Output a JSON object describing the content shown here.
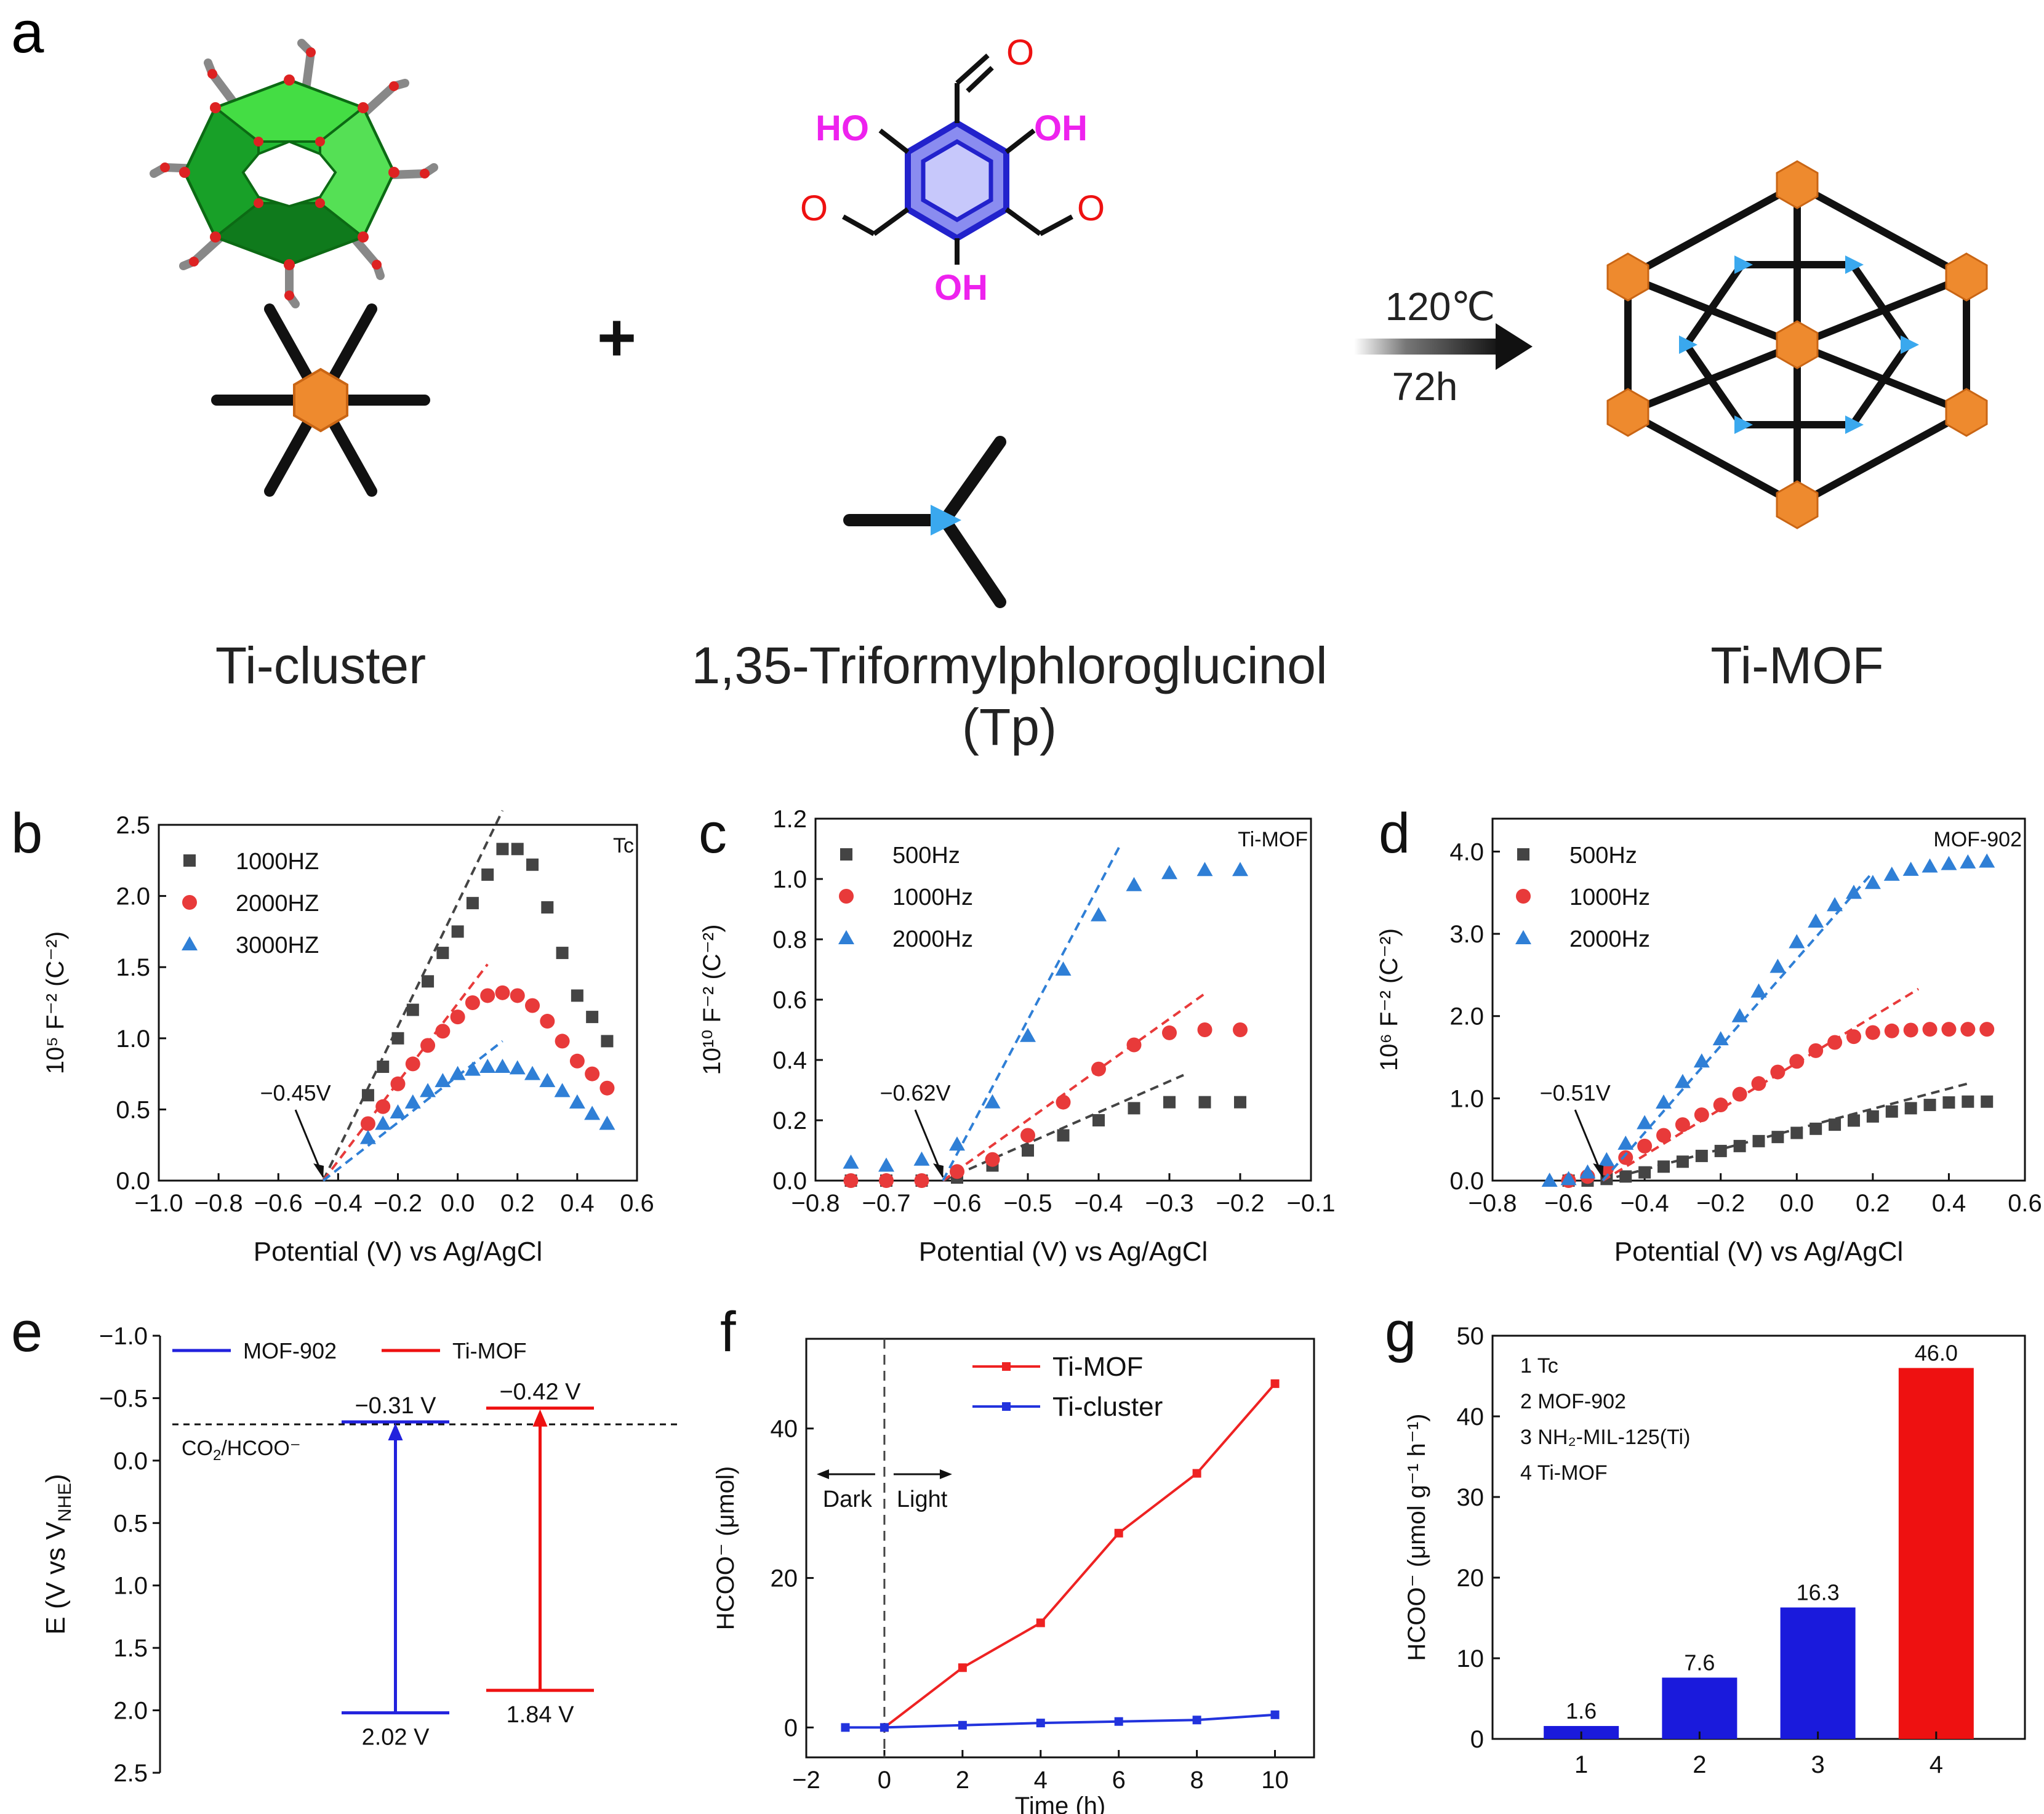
{
  "panel_a": {
    "letter": "a",
    "plus": "+",
    "cluster_label": "Ti-cluster",
    "linker_label_line1": "1,35-Triformylphloroglucinol",
    "linker_label_line2": "(Tp)",
    "product_label": "Ti-MOF",
    "condition_temp": "120℃",
    "condition_time": "72h",
    "mol_oh_left": "HO",
    "mol_oh_right": "OH",
    "mol_oh_bottom": "OH",
    "mol_o": "O"
  },
  "chart_data": [
    {
      "panel": "b",
      "type": "scatter",
      "title": "Tc",
      "xlabel": "Potential (V) vs Ag/AgCl",
      "ylabel": "10⁵ F⁻² (C⁻²)",
      "xlim": [
        -1.0,
        0.6
      ],
      "ylim": [
        0,
        2.5
      ],
      "xticks": [
        -1.0,
        -0.8,
        -0.6,
        -0.4,
        -0.2,
        0.0,
        0.2,
        0.4,
        0.6
      ],
      "xtick_labels": [
        "−1.0",
        "−0.8",
        "−0.6",
        "−0.4",
        "−0.2",
        "0.0",
        "0.2",
        "0.4",
        "0.6"
      ],
      "yticks": [
        0,
        0.5,
        1.0,
        1.5,
        2.0,
        2.5
      ],
      "ytick_labels": [
        "0.0",
        "0.5",
        "1.0",
        "1.5",
        "2.0",
        "2.5"
      ],
      "annotation": "−0.45V",
      "intercept": -0.45,
      "series": [
        {
          "name": "1000HZ",
          "marker": "square",
          "color": "#444444",
          "x": [
            -0.3,
            -0.25,
            -0.2,
            -0.15,
            -0.1,
            -0.05,
            0.0,
            0.05,
            0.1,
            0.15,
            0.2,
            0.25,
            0.3,
            0.35,
            0.4,
            0.45,
            0.5
          ],
          "y": [
            0.6,
            0.8,
            1.0,
            1.2,
            1.4,
            1.6,
            1.75,
            1.95,
            2.15,
            2.33,
            2.33,
            2.22,
            1.92,
            1.6,
            1.3,
            1.15,
            0.98
          ],
          "fit": [
            -0.45,
            0.0,
            0.15,
            2.6
          ]
        },
        {
          "name": "2000HZ",
          "marker": "circle",
          "color": "#e83a3a",
          "x": [
            -0.3,
            -0.25,
            -0.2,
            -0.15,
            -0.1,
            -0.05,
            0.0,
            0.05,
            0.1,
            0.15,
            0.2,
            0.25,
            0.3,
            0.35,
            0.4,
            0.45,
            0.5
          ],
          "y": [
            0.4,
            0.52,
            0.68,
            0.82,
            0.95,
            1.05,
            1.15,
            1.25,
            1.3,
            1.32,
            1.3,
            1.23,
            1.12,
            0.98,
            0.84,
            0.75,
            0.65
          ],
          "fit": [
            -0.45,
            0.0,
            0.1,
            1.52
          ]
        },
        {
          "name": "3000HZ",
          "marker": "triangle",
          "color": "#2f7fd6",
          "x": [
            -0.3,
            -0.25,
            -0.2,
            -0.15,
            -0.1,
            -0.05,
            0.0,
            0.05,
            0.1,
            0.15,
            0.2,
            0.25,
            0.3,
            0.35,
            0.4,
            0.45,
            0.5
          ],
          "y": [
            0.3,
            0.4,
            0.48,
            0.55,
            0.63,
            0.7,
            0.75,
            0.78,
            0.8,
            0.8,
            0.79,
            0.75,
            0.7,
            0.63,
            0.55,
            0.47,
            0.4
          ],
          "fit": [
            -0.45,
            0.0,
            0.15,
            0.98
          ]
        }
      ]
    },
    {
      "panel": "c",
      "type": "scatter",
      "title": "Ti-MOF",
      "xlabel": "Potential (V) vs Ag/AgCl",
      "ylabel": "10¹⁰ F⁻² (C⁻²)",
      "xlim": [
        -0.8,
        -0.1
      ],
      "ylim": [
        0,
        1.2
      ],
      "xticks": [
        -0.8,
        -0.7,
        -0.6,
        -0.5,
        -0.4,
        -0.3,
        -0.2,
        -0.1
      ],
      "xtick_labels": [
        "−0.8",
        "−0.7",
        "−0.6",
        "−0.5",
        "−0.4",
        "−0.3",
        "−0.2",
        "−0.1"
      ],
      "yticks": [
        0,
        0.2,
        0.4,
        0.6,
        0.8,
        1.0,
        1.2
      ],
      "ytick_labels": [
        "0.0",
        "0.2",
        "0.4",
        "0.6",
        "0.8",
        "1.0",
        "1.2"
      ],
      "annotation": "−0.62V",
      "intercept": -0.62,
      "series": [
        {
          "name": "500Hz",
          "marker": "square",
          "color": "#444444",
          "x": [
            -0.75,
            -0.7,
            -0.65,
            -0.6,
            -0.55,
            -0.5,
            -0.45,
            -0.4,
            -0.35,
            -0.3,
            -0.25,
            -0.2
          ],
          "y": [
            0.0,
            0.0,
            0.0,
            0.01,
            0.05,
            0.1,
            0.15,
            0.2,
            0.24,
            0.26,
            0.26,
            0.26
          ],
          "fit": [
            -0.62,
            0.0,
            -0.28,
            0.35
          ]
        },
        {
          "name": "1000Hz",
          "marker": "circle",
          "color": "#e83a3a",
          "x": [
            -0.75,
            -0.7,
            -0.65,
            -0.6,
            -0.55,
            -0.5,
            -0.45,
            -0.4,
            -0.35,
            -0.3,
            -0.25,
            -0.2
          ],
          "y": [
            0.0,
            0.0,
            0.0,
            0.03,
            0.07,
            0.15,
            0.26,
            0.37,
            0.45,
            0.49,
            0.5,
            0.5
          ],
          "fit": [
            -0.62,
            0.0,
            -0.25,
            0.62
          ]
        },
        {
          "name": "2000Hz",
          "marker": "triangle",
          "color": "#2f7fd6",
          "x": [
            -0.75,
            -0.7,
            -0.65,
            -0.6,
            -0.55,
            -0.5,
            -0.45,
            -0.4,
            -0.35,
            -0.3,
            -0.25,
            -0.2
          ],
          "y": [
            0.06,
            0.05,
            0.07,
            0.12,
            0.26,
            0.48,
            0.7,
            0.88,
            0.98,
            1.02,
            1.03,
            1.03
          ],
          "fit": [
            -0.62,
            0.0,
            -0.37,
            1.11
          ]
        }
      ]
    },
    {
      "panel": "d",
      "type": "scatter",
      "title": "MOF-902",
      "xlabel": "Potential (V) vs Ag/AgCl",
      "ylabel": "10⁶ F⁻² (C⁻²)",
      "xlim": [
        -0.8,
        0.6
      ],
      "ylim": [
        0,
        4.4
      ],
      "xticks": [
        -0.8,
        -0.6,
        -0.4,
        -0.2,
        0.0,
        0.2,
        0.4,
        0.6
      ],
      "xtick_labels": [
        "−0.8",
        "−0.6",
        "−0.4",
        "−0.2",
        "0.0",
        "0.2",
        "0.4",
        "0.6"
      ],
      "yticks": [
        0,
        1.0,
        2.0,
        3.0,
        4.0
      ],
      "ytick_labels": [
        "0.0",
        "1.0",
        "2.0",
        "3.0",
        "4.0"
      ],
      "annotation": "−0.51V",
      "intercept": -0.51,
      "series": [
        {
          "name": "500Hz",
          "marker": "square",
          "color": "#444444",
          "x": [
            -0.6,
            -0.55,
            -0.5,
            -0.45,
            -0.4,
            -0.35,
            -0.3,
            -0.25,
            -0.2,
            -0.15,
            -0.1,
            -0.05,
            0.0,
            0.05,
            0.1,
            0.15,
            0.2,
            0.25,
            0.3,
            0.35,
            0.4,
            0.45,
            0.5
          ],
          "y": [
            0.0,
            0.0,
            0.02,
            0.05,
            0.1,
            0.17,
            0.23,
            0.3,
            0.36,
            0.42,
            0.48,
            0.53,
            0.58,
            0.63,
            0.68,
            0.73,
            0.78,
            0.84,
            0.88,
            0.92,
            0.95,
            0.96,
            0.96
          ],
          "fit": [
            -0.51,
            0.0,
            0.45,
            1.18
          ]
        },
        {
          "name": "1000Hz",
          "marker": "circle",
          "color": "#e83a3a",
          "x": [
            -0.6,
            -0.55,
            -0.5,
            -0.45,
            -0.4,
            -0.35,
            -0.3,
            -0.25,
            -0.2,
            -0.15,
            -0.1,
            -0.05,
            0.0,
            0.05,
            0.1,
            0.15,
            0.2,
            0.25,
            0.3,
            0.35,
            0.4,
            0.45,
            0.5
          ],
          "y": [
            0.0,
            0.05,
            0.15,
            0.28,
            0.42,
            0.55,
            0.68,
            0.8,
            0.92,
            1.05,
            1.18,
            1.32,
            1.45,
            1.58,
            1.68,
            1.75,
            1.8,
            1.82,
            1.83,
            1.84,
            1.84,
            1.84,
            1.84
          ],
          "fit": [
            -0.51,
            0.0,
            0.32,
            2.33
          ]
        },
        {
          "name": "2000Hz",
          "marker": "triangle",
          "color": "#2f7fd6",
          "x": [
            -0.65,
            -0.6,
            -0.55,
            -0.5,
            -0.45,
            -0.4,
            -0.35,
            -0.3,
            -0.25,
            -0.2,
            -0.15,
            -0.1,
            -0.05,
            0.0,
            0.05,
            0.1,
            0.15,
            0.2,
            0.25,
            0.3,
            0.35,
            0.4,
            0.45,
            0.5
          ],
          "y": [
            0.0,
            0.02,
            0.1,
            0.25,
            0.45,
            0.7,
            0.95,
            1.2,
            1.45,
            1.72,
            2.0,
            2.3,
            2.6,
            2.9,
            3.15,
            3.35,
            3.5,
            3.62,
            3.72,
            3.78,
            3.82,
            3.85,
            3.87,
            3.88
          ],
          "fit": [
            -0.51,
            0.0,
            0.2,
            3.75
          ]
        }
      ]
    },
    {
      "panel": "e",
      "type": "band_diagram",
      "ylabel": "E (V vs V",
      "ylabel_sub": "NHE",
      "ylabel_end": ")",
      "ylim": [
        -1.0,
        2.5
      ],
      "inverted": true,
      "yticks": [
        -1.0,
        -0.5,
        0.0,
        0.5,
        1.0,
        1.5,
        2.0,
        2.5
      ],
      "ytick_labels": [
        "−1.0",
        "−0.5",
        "0.0",
        "0.5",
        "1.0",
        "1.5",
        "2.0",
        "2.5"
      ],
      "reference_label": "CO",
      "reference_label_sub": "2",
      "reference_label_end": "/HCOO⁻",
      "reference_value": -0.29,
      "series": [
        {
          "name": "MOF-902",
          "color": "#2222dd",
          "cb": -0.31,
          "vb": 2.02,
          "cb_label": "−0.31 V",
          "vb_label": "2.02 V"
        },
        {
          "name": "Ti-MOF",
          "color": "#ee1111",
          "cb": -0.42,
          "vb": 1.84,
          "cb_label": "−0.42 V",
          "vb_label": "1.84 V"
        }
      ]
    },
    {
      "panel": "f",
      "type": "line",
      "xlabel": "Time (h)",
      "ylabel": "HCOO⁻ (μmol)",
      "xlim": [
        -2,
        11
      ],
      "ylim": [
        -4,
        52
      ],
      "xticks": [
        -2,
        0,
        2,
        4,
        6,
        8,
        10
      ],
      "xtick_labels": [
        "−2",
        "0",
        "2",
        "4",
        "6",
        "8",
        "10"
      ],
      "yticks": [
        0,
        20,
        40
      ],
      "ytick_labels": [
        "0",
        "20",
        "40"
      ],
      "dark_label": "Dark",
      "light_label": "Light",
      "divider_x": 0,
      "series": [
        {
          "name": "Ti-MOF",
          "color": "#ee2222",
          "x": [
            0,
            2,
            4,
            6,
            8,
            10
          ],
          "y": [
            0,
            8,
            14,
            26,
            34,
            46
          ]
        },
        {
          "name": "Ti-cluster",
          "color": "#2233dd",
          "x": [
            -1,
            0,
            2,
            4,
            6,
            8,
            10
          ],
          "y": [
            0,
            0,
            0.3,
            0.6,
            0.8,
            1.0,
            1.7
          ]
        }
      ]
    },
    {
      "panel": "g",
      "type": "bar",
      "ylabel": "HCOO⁻ (μmol g⁻¹ h⁻¹)",
      "categories": [
        "1",
        "2",
        "3",
        "4"
      ],
      "values": [
        1.6,
        7.6,
        16.3,
        46.0
      ],
      "value_labels": [
        "1.6",
        "7.6",
        "16.3",
        "46.0"
      ],
      "colors": [
        "#1a1adc",
        "#1a1adc",
        "#1a1adc",
        "#ee1111"
      ],
      "ylim": [
        0,
        50
      ],
      "yticks": [
        0,
        10,
        20,
        30,
        40,
        50
      ],
      "ytick_labels": [
        "0",
        "10",
        "20",
        "30",
        "40",
        "50"
      ],
      "legend": [
        "1 Tc",
        "2 MOF-902",
        "3 NH₂-MIL-125(Ti)",
        "4 Ti-MOF"
      ]
    }
  ]
}
